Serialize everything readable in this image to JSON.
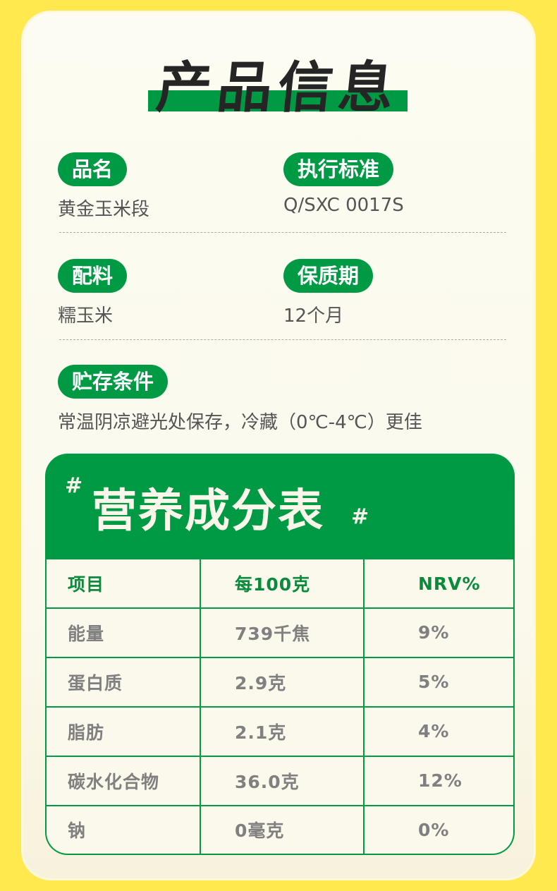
{
  "title": "产品信息",
  "info": {
    "name_label": "品名",
    "name_value": "黄金玉米段",
    "standard_label": "执行标准",
    "standard_value": "Q/SXC 0017S",
    "ingredients_label": "配料",
    "ingredients_value": "糯玉米",
    "shelf_label": "保质期",
    "shelf_value": "12个月",
    "storage_label": "贮存条件",
    "storage_value": "常温阴凉避光处保存，冷藏（0℃-4℃）更佳"
  },
  "nutrition": {
    "title": "营养成分表",
    "hash": "#",
    "headers": [
      "项目",
      "每100克",
      "NRV%"
    ],
    "rows": [
      [
        "能量",
        "739千焦",
        "9%"
      ],
      [
        "蛋白质",
        "2.9克",
        "5%"
      ],
      [
        "脂肪",
        "2.1克",
        "4%"
      ],
      [
        "碳水化合物",
        "36.0克",
        "12%"
      ],
      [
        "钠",
        "0毫克",
        "0%"
      ]
    ]
  },
  "colors": {
    "accent": "#009A44",
    "background": "#FFE94F"
  }
}
